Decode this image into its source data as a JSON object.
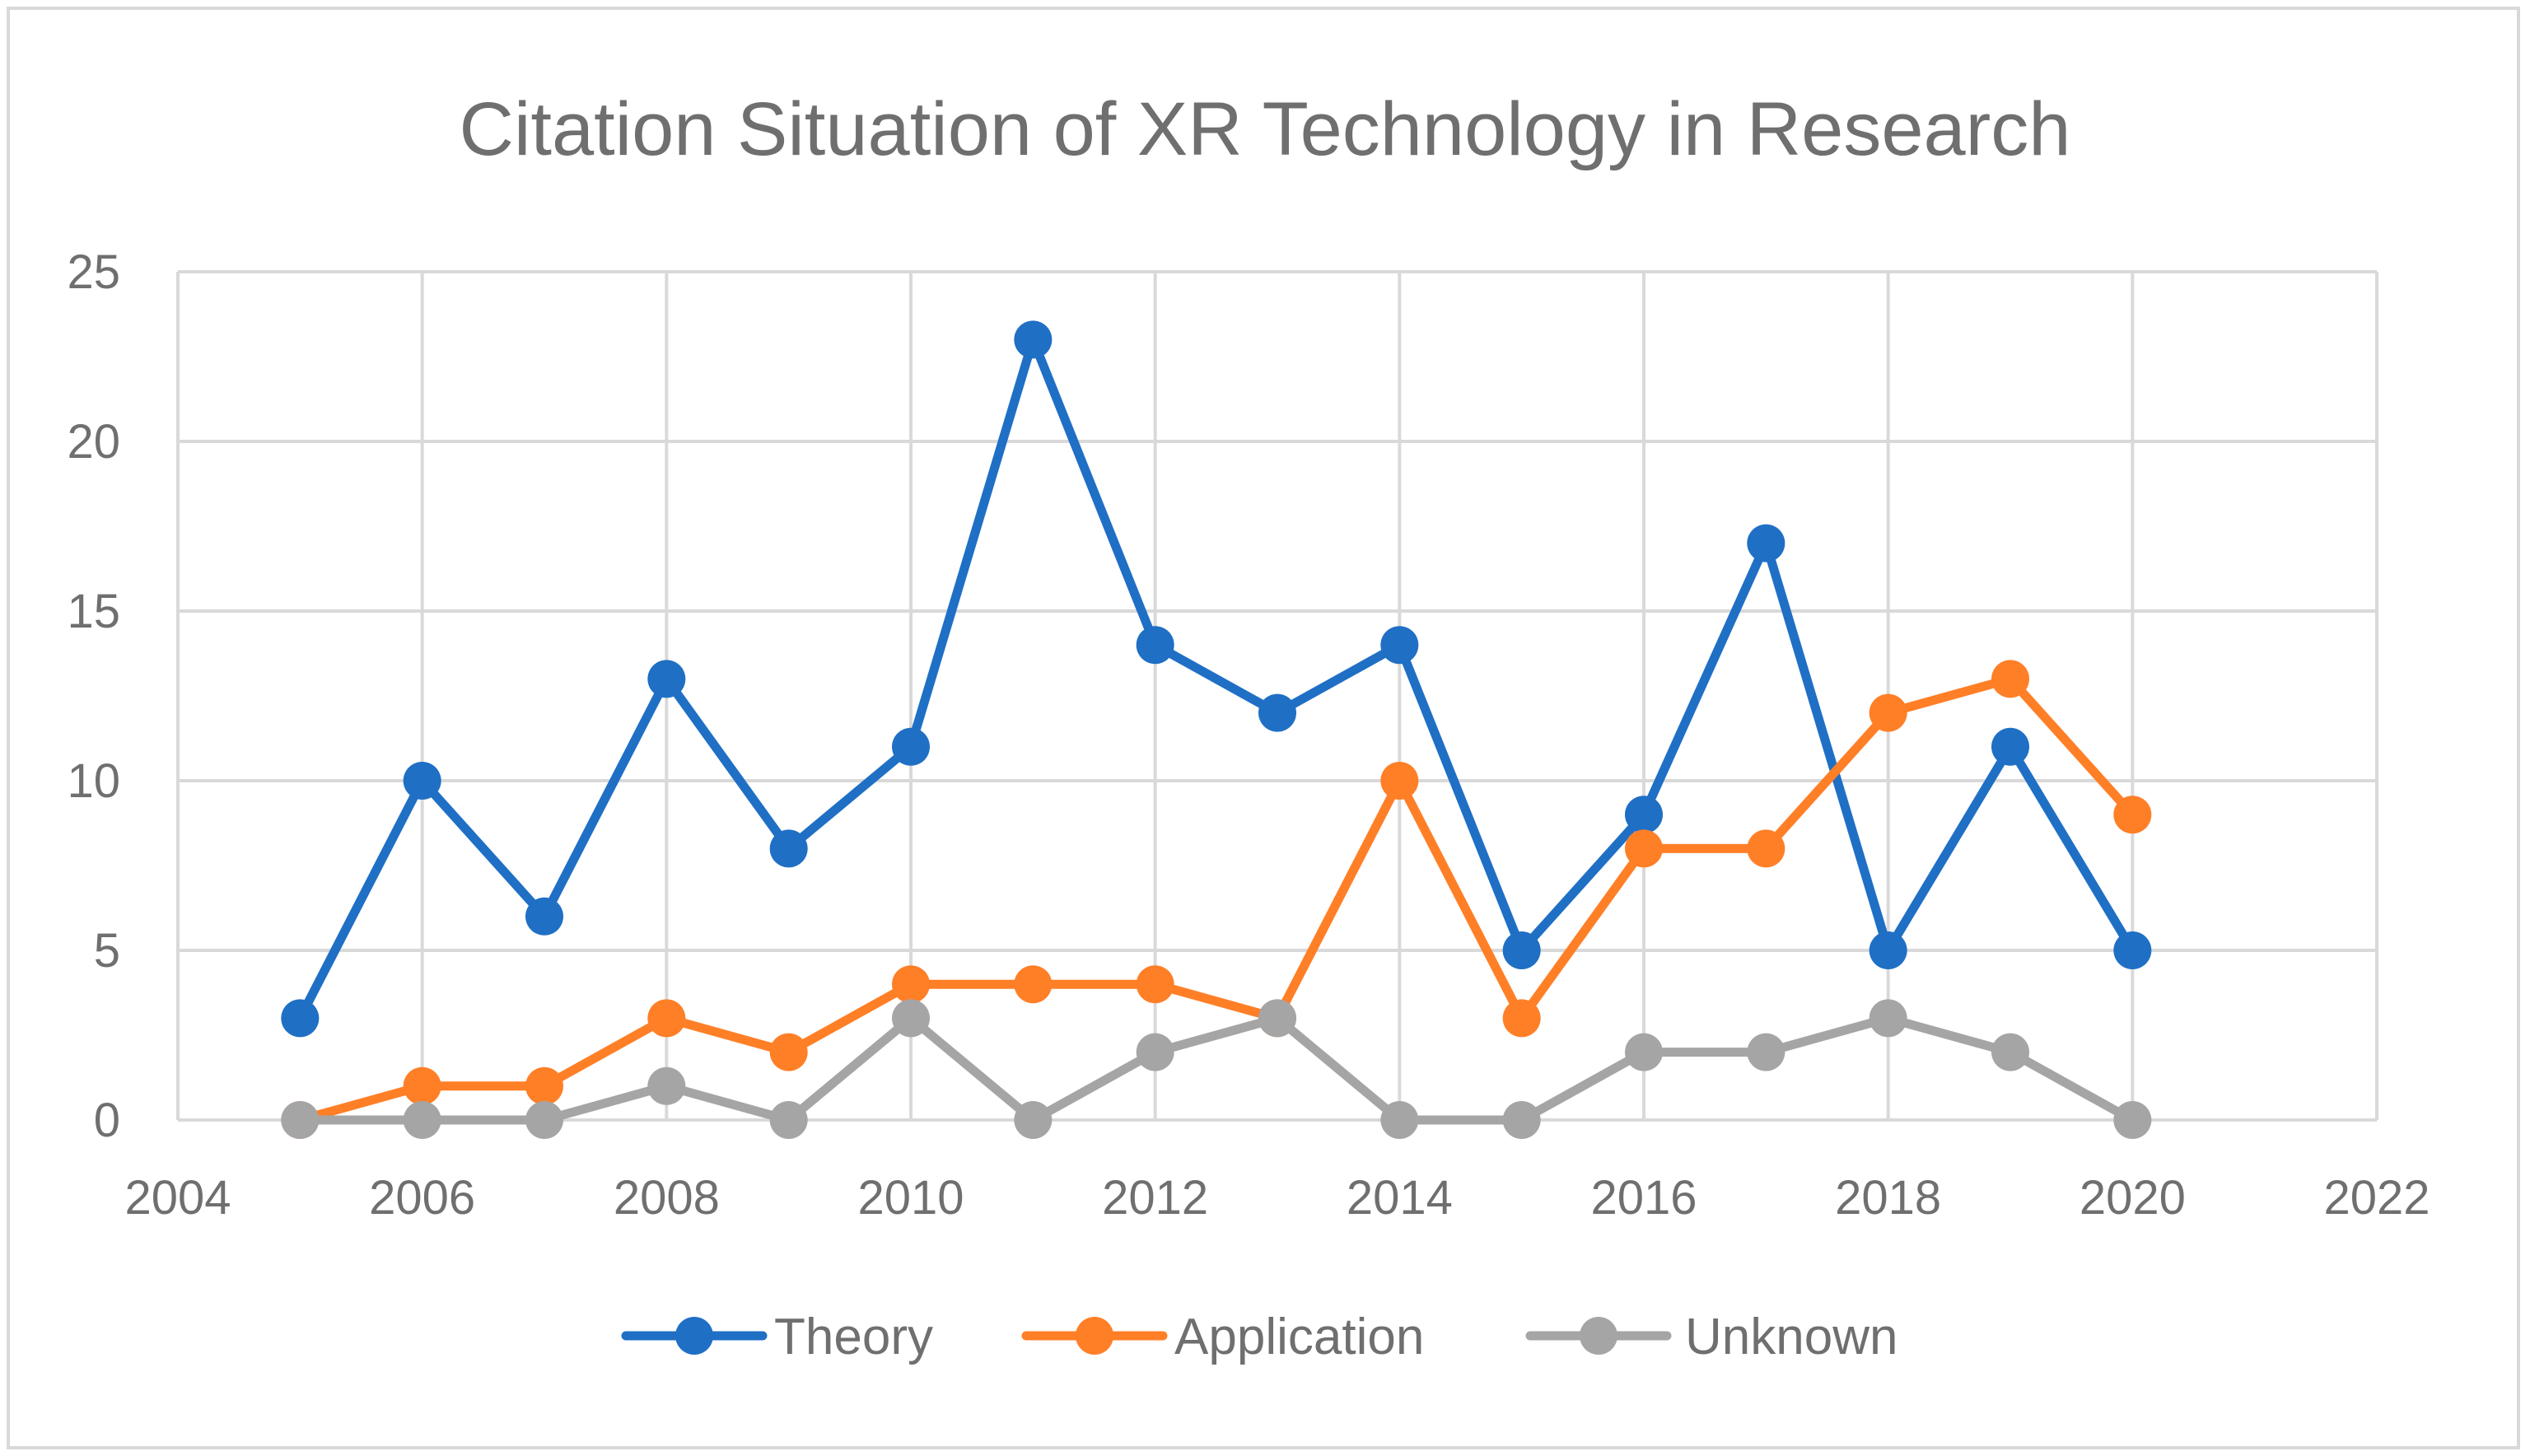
{
  "chart_data": {
    "type": "scatter",
    "title": "Citation Situation of XR Technology in Research",
    "xlabel": "",
    "ylabel": "",
    "xlim": [
      2004,
      2022
    ],
    "ylim": [
      0,
      25
    ],
    "xticks": [
      2004,
      2006,
      2008,
      2010,
      2012,
      2014,
      2016,
      2018,
      2020,
      2022
    ],
    "yticks": [
      0,
      5,
      10,
      15,
      20,
      25
    ],
    "grid": true,
    "legend_position": "bottom",
    "x": [
      2005,
      2006,
      2007,
      2008,
      2009,
      2010,
      2011,
      2012,
      2013,
      2014,
      2015,
      2016,
      2017,
      2018,
      2019,
      2020
    ],
    "series": [
      {
        "name": "Theory",
        "color": "#1f6fc5",
        "values": [
          3,
          10,
          6,
          13,
          8,
          11,
          23,
          14,
          12,
          14,
          5,
          9,
          17,
          5,
          11,
          5
        ]
      },
      {
        "name": "Application",
        "color": "#ff7f27",
        "values": [
          0,
          1,
          1,
          3,
          2,
          4,
          4,
          4,
          3,
          10,
          3,
          8,
          8,
          12,
          13,
          9
        ]
      },
      {
        "name": "Unknown",
        "color": "#a5a5a5",
        "values": [
          0,
          0,
          0,
          1,
          0,
          3,
          0,
          2,
          3,
          0,
          0,
          2,
          2,
          3,
          2,
          0
        ]
      }
    ]
  }
}
